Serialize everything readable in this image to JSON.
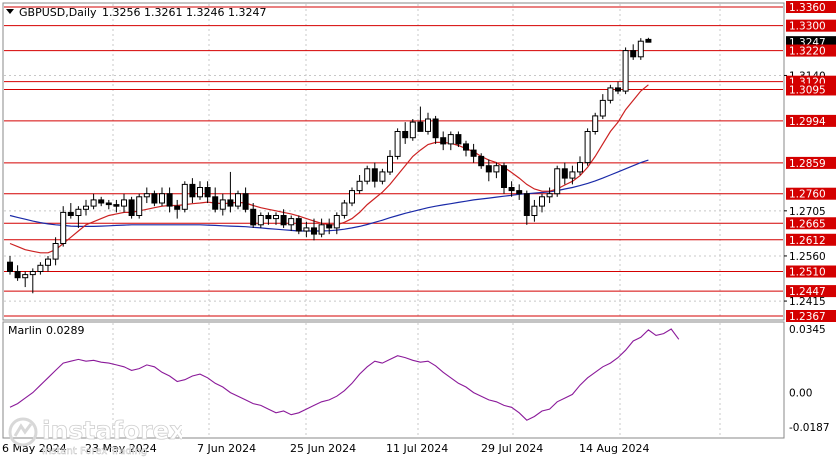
{
  "header": {
    "symbol": "GBPUSD,Daily",
    "ohlc": "1.3256 1.3261 1.3246 1.3247"
  },
  "indicator": {
    "name": "Marlin",
    "value": "0.0289",
    "color": "#8b1a9a",
    "scale_labels": [
      "0.0345",
      "0.00",
      "-0.0187"
    ]
  },
  "watermark": {
    "brand": "instaforex",
    "tagline": "Instant Forex Trading",
    "color": "#ffffff"
  },
  "colors": {
    "background": "#ffffff",
    "grid": "#c8c8c8",
    "level_line": "#d40000",
    "candle_bull": "#ffffff",
    "candle_bear": "#000000",
    "ma_fast": "#cc2222",
    "ma_slow": "#1a2aa8",
    "current_price_bg": "#000000"
  },
  "chart_data": [
    {
      "type": "candlestick",
      "title": "GBPUSD,Daily",
      "x_tick_labels": [
        "6 May 2024",
        "23 May 2024",
        "7 Jun 2024",
        "25 Jun 2024",
        "11 Jul 2024",
        "29 Jul 2024",
        "14 Aug 2024"
      ],
      "y_tick_labels": [
        "1.3360",
        "1.3300",
        "1.3247",
        "1.3220",
        "1.3140",
        "1.3120",
        "1.3095",
        "1.2994",
        "1.2859",
        "1.2760",
        "1.2705",
        "1.2665",
        "1.2612",
        "1.2560",
        "1.2510",
        "1.2447",
        "1.2415",
        "1.2367"
      ],
      "ylim": [
        1.2367,
        1.338
      ],
      "grid": true,
      "current_price": 1.3247,
      "levels": [
        1.336,
        1.33,
        1.322,
        1.312,
        1.3095,
        1.2994,
        1.2859,
        1.276,
        1.2665,
        1.2612,
        1.251,
        1.2447,
        1.2367
      ],
      "level_labels": [
        "1.3360",
        "1.3300",
        "1.3220",
        "1.3120",
        "1.3095",
        "1.2994",
        "1.2859",
        "1.2760",
        "1.2665",
        "1.2612",
        "1.2510",
        "1.2447",
        "1.2367"
      ],
      "candles": [
        [
          1.254,
          1.256,
          1.25,
          1.251
        ],
        [
          1.251,
          1.253,
          1.248,
          1.249
        ],
        [
          1.249,
          1.251,
          1.246,
          1.25
        ],
        [
          1.25,
          1.252,
          1.244,
          1.251
        ],
        [
          1.251,
          1.254,
          1.25,
          1.253
        ],
        [
          1.253,
          1.256,
          1.251,
          1.255
        ],
        [
          1.255,
          1.262,
          1.253,
          1.26
        ],
        [
          1.26,
          1.272,
          1.259,
          1.27
        ],
        [
          1.27,
          1.273,
          1.268,
          1.269
        ],
        [
          1.269,
          1.272,
          1.265,
          1.271
        ],
        [
          1.271,
          1.274,
          1.269,
          1.272
        ],
        [
          1.272,
          1.276,
          1.271,
          1.274
        ],
        [
          1.274,
          1.275,
          1.272,
          1.273
        ],
        [
          1.273,
          1.274,
          1.271,
          1.2725
        ],
        [
          1.2725,
          1.274,
          1.27,
          1.272
        ],
        [
          1.272,
          1.276,
          1.27,
          1.274
        ],
        [
          1.274,
          1.275,
          1.268,
          1.269
        ],
        [
          1.269,
          1.276,
          1.268,
          1.275
        ],
        [
          1.275,
          1.278,
          1.273,
          1.276
        ],
        [
          1.276,
          1.277,
          1.272,
          1.273
        ],
        [
          1.273,
          1.278,
          1.272,
          1.276
        ],
        [
          1.276,
          1.278,
          1.27,
          1.272
        ],
        [
          1.272,
          1.274,
          1.268,
          1.271
        ],
        [
          1.271,
          1.28,
          1.27,
          1.279
        ],
        [
          1.279,
          1.281,
          1.273,
          1.275
        ],
        [
          1.275,
          1.28,
          1.274,
          1.278
        ],
        [
          1.278,
          1.28,
          1.273,
          1.275
        ],
        [
          1.275,
          1.278,
          1.27,
          1.271
        ],
        [
          1.271,
          1.276,
          1.269,
          1.274
        ],
        [
          1.274,
          1.283,
          1.27,
          1.272
        ],
        [
          1.272,
          1.277,
          1.271,
          1.276
        ],
        [
          1.276,
          1.278,
          1.27,
          1.271
        ],
        [
          1.271,
          1.273,
          1.265,
          1.266
        ],
        [
          1.266,
          1.27,
          1.265,
          1.269
        ],
        [
          1.269,
          1.27,
          1.266,
          1.268
        ],
        [
          1.268,
          1.27,
          1.266,
          1.269
        ],
        [
          1.269,
          1.271,
          1.265,
          1.266
        ],
        [
          1.266,
          1.269,
          1.264,
          1.268
        ],
        [
          1.268,
          1.269,
          1.263,
          1.264
        ],
        [
          1.264,
          1.267,
          1.262,
          1.265
        ],
        [
          1.265,
          1.268,
          1.261,
          1.263
        ],
        [
          1.263,
          1.268,
          1.262,
          1.266
        ],
        [
          1.266,
          1.268,
          1.263,
          1.265
        ],
        [
          1.265,
          1.27,
          1.263,
          1.269
        ],
        [
          1.269,
          1.274,
          1.268,
          1.273
        ],
        [
          1.273,
          1.278,
          1.272,
          1.277
        ],
        [
          1.277,
          1.282,
          1.276,
          1.28
        ],
        [
          1.28,
          1.285,
          1.279,
          1.284
        ],
        [
          1.284,
          1.286,
          1.278,
          1.28
        ],
        [
          1.28,
          1.284,
          1.279,
          1.283
        ],
        [
          1.283,
          1.29,
          1.282,
          1.288
        ],
        [
          1.288,
          1.297,
          1.287,
          1.296
        ],
        [
          1.296,
          1.299,
          1.292,
          1.294
        ],
        [
          1.294,
          1.3,
          1.293,
          1.299
        ],
        [
          1.299,
          1.304,
          1.296,
          1.296
        ],
        [
          1.296,
          1.302,
          1.295,
          1.3
        ],
        [
          1.3,
          1.301,
          1.292,
          1.294
        ],
        [
          1.294,
          1.296,
          1.29,
          1.292
        ],
        [
          1.292,
          1.296,
          1.29,
          1.295
        ],
        [
          1.295,
          1.296,
          1.291,
          1.292
        ],
        [
          1.292,
          1.293,
          1.288,
          1.29
        ],
        [
          1.29,
          1.292,
          1.286,
          1.288
        ],
        [
          1.288,
          1.289,
          1.284,
          1.285
        ],
        [
          1.285,
          1.287,
          1.28,
          1.283
        ],
        [
          1.283,
          1.286,
          1.281,
          1.285
        ],
        [
          1.285,
          1.286,
          1.276,
          1.278
        ],
        [
          1.278,
          1.28,
          1.275,
          1.277
        ],
        [
          1.277,
          1.279,
          1.274,
          1.276
        ],
        [
          1.276,
          1.277,
          1.266,
          1.269
        ],
        [
          1.269,
          1.274,
          1.267,
          1.272
        ],
        [
          1.272,
          1.276,
          1.27,
          1.275
        ],
        [
          1.275,
          1.278,
          1.273,
          1.276
        ],
        [
          1.276,
          1.285,
          1.275,
          1.284
        ],
        [
          1.284,
          1.286,
          1.279,
          1.281
        ],
        [
          1.281,
          1.285,
          1.279,
          1.283
        ],
        [
          1.283,
          1.288,
          1.282,
          1.286
        ],
        [
          1.286,
          1.297,
          1.285,
          1.296
        ],
        [
          1.296,
          1.302,
          1.295,
          1.301
        ],
        [
          1.301,
          1.308,
          1.3,
          1.306
        ],
        [
          1.306,
          1.311,
          1.305,
          1.31
        ],
        [
          1.31,
          1.312,
          1.308,
          1.309
        ],
        [
          1.309,
          1.323,
          1.308,
          1.322
        ],
        [
          1.322,
          1.324,
          1.319,
          1.32
        ],
        [
          1.32,
          1.326,
          1.319,
          1.325
        ],
        [
          1.3256,
          1.3261,
          1.3246,
          1.3247
        ]
      ],
      "ma_fast": [
        1.26,
        1.259,
        1.258,
        1.2575,
        1.257,
        1.257,
        1.258,
        1.26,
        1.262,
        1.264,
        1.266,
        1.267,
        1.268,
        1.269,
        1.2695,
        1.27,
        1.27,
        1.2705,
        1.271,
        1.2715,
        1.272,
        1.2722,
        1.2722,
        1.2725,
        1.2728,
        1.273,
        1.2733,
        1.273,
        1.2728,
        1.273,
        1.2732,
        1.273,
        1.2722,
        1.2715,
        1.271,
        1.2705,
        1.27,
        1.2695,
        1.2688,
        1.268,
        1.2672,
        1.2665,
        1.266,
        1.266,
        1.2668,
        1.268,
        1.27,
        1.2725,
        1.2745,
        1.2765,
        1.279,
        1.282,
        1.285,
        1.288,
        1.29,
        1.2918,
        1.2925,
        1.2925,
        1.2922,
        1.2915,
        1.2905,
        1.2895,
        1.288,
        1.2868,
        1.286,
        1.2845,
        1.2828,
        1.281,
        1.279,
        1.2775,
        1.2768,
        1.2768,
        1.2775,
        1.2788,
        1.28,
        1.2818,
        1.2845,
        1.288,
        1.292,
        1.296,
        1.299,
        1.303,
        1.306,
        1.309,
        1.311
      ],
      "ma_slow": [
        1.269,
        1.2684,
        1.2678,
        1.2672,
        1.2667,
        1.2663,
        1.266,
        1.2658,
        1.2656,
        1.2655,
        1.2655,
        1.2655,
        1.2656,
        1.2657,
        1.2658,
        1.2659,
        1.266,
        1.266,
        1.266,
        1.266,
        1.266,
        1.266,
        1.266,
        1.266,
        1.266,
        1.266,
        1.2659,
        1.2658,
        1.2657,
        1.2656,
        1.2655,
        1.2654,
        1.2652,
        1.265,
        1.2648,
        1.2646,
        1.2644,
        1.2642,
        1.264,
        1.264,
        1.264,
        1.264,
        1.2641,
        1.2643,
        1.2646,
        1.265,
        1.2655,
        1.2661,
        1.2668,
        1.2675,
        1.2683,
        1.269,
        1.2697,
        1.2703,
        1.2709,
        1.2715,
        1.272,
        1.2724,
        1.2728,
        1.2732,
        1.2736,
        1.274,
        1.2743,
        1.2746,
        1.2749,
        1.2752,
        1.2755,
        1.2758,
        1.276,
        1.2762,
        1.2764,
        1.2766,
        1.277,
        1.2775,
        1.278,
        1.2786,
        1.2793,
        1.2801,
        1.281,
        1.282,
        1.283,
        1.284,
        1.285,
        1.286,
        1.2868
      ]
    },
    {
      "type": "line",
      "title": "Marlin 0.0289",
      "ylim": [
        -0.0187,
        0.0345
      ],
      "tick_labels": [
        "0.0345",
        "0.00",
        "-0.0187"
      ],
      "series": [
        {
          "name": "Marlin",
          "values": [
            -0.008,
            -0.006,
            -0.003,
            0.0,
            0.004,
            0.008,
            0.012,
            0.016,
            0.017,
            0.018,
            0.017,
            0.0175,
            0.0165,
            0.016,
            0.015,
            0.014,
            0.012,
            0.013,
            0.015,
            0.014,
            0.011,
            0.009,
            0.006,
            0.007,
            0.009,
            0.01,
            0.008,
            0.005,
            0.003,
            0.0,
            -0.002,
            -0.004,
            -0.006,
            -0.007,
            -0.009,
            -0.011,
            -0.01,
            -0.012,
            -0.011,
            -0.009,
            -0.007,
            -0.005,
            -0.004,
            -0.002,
            0.001,
            0.005,
            0.01,
            0.014,
            0.017,
            0.016,
            0.018,
            0.02,
            0.019,
            0.0175,
            0.0165,
            0.017,
            0.0145,
            0.011,
            0.008,
            0.005,
            0.003,
            0.0,
            -0.002,
            -0.004,
            -0.005,
            -0.007,
            -0.008,
            -0.011,
            -0.015,
            -0.013,
            -0.01,
            -0.009,
            -0.005,
            -0.003,
            -0.001,
            0.004,
            0.008,
            0.011,
            0.014,
            0.016,
            0.019,
            0.023,
            0.028,
            0.03,
            0.034,
            0.031,
            0.032,
            0.0345,
            0.0289
          ]
        }
      ]
    }
  ]
}
